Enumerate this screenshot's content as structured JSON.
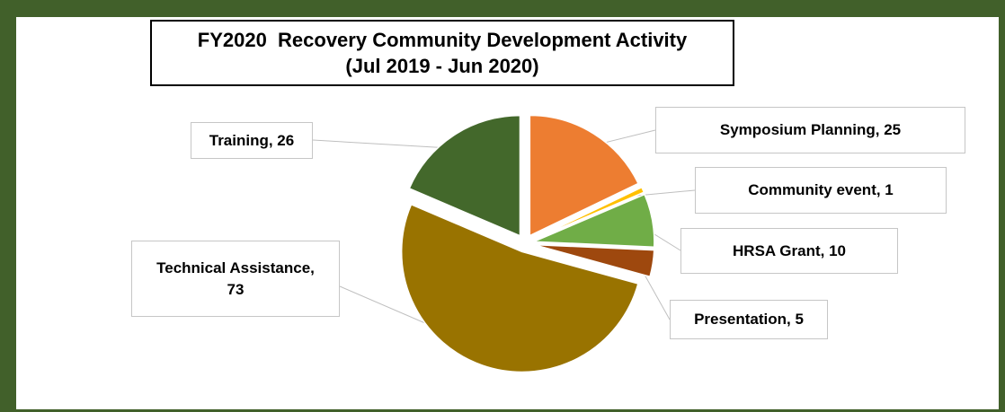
{
  "chart_data": {
    "type": "pie",
    "title_lines": [
      "FY2020  Recovery Community Development Activity",
      "(Jul 2019 - Jun 2020)"
    ],
    "categories": [
      "Symposium Planning",
      "Community event",
      "HRSA Grant",
      "Presentation",
      "Technical Assistance",
      "Training"
    ],
    "values": [
      25,
      1,
      10,
      5,
      73,
      26
    ],
    "labels": [
      "Symposium Planning, 25",
      "Community event, 1",
      "HRSA Grant, 10",
      "Presentation, 5",
      "Technical Assistance,\n73",
      "Training, 26"
    ],
    "colors": [
      "#ed7d31",
      "#ffc000",
      "#70ad47",
      "#9e480e",
      "#997300",
      "#43682b"
    ],
    "legend": "none",
    "data_labels": "callouts with leader lines"
  }
}
